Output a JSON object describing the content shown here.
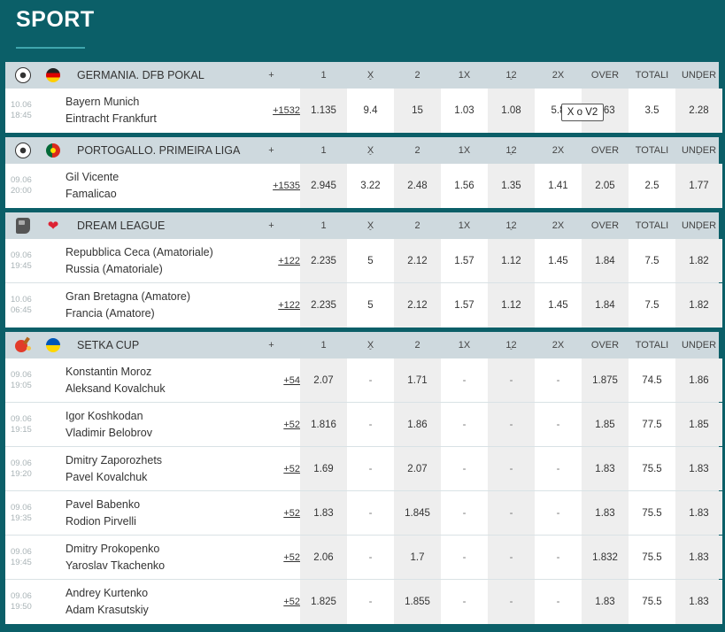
{
  "page_title": "SPORT",
  "columns": [
    "+",
    "1",
    "X",
    "2",
    "1X",
    "12",
    "2X",
    "OVER",
    "TOTALI",
    "UNDER"
  ],
  "tooltip": "X o V2",
  "leagues": [
    {
      "name": "GERMANIA. DFB POKAL",
      "sport_icon": "soccer-ball-icon",
      "flag_icon": "germany-flag-icon",
      "events": [
        {
          "date": "10.06",
          "time": "18:45",
          "home": "Bayern Munich",
          "away": "Eintracht Frankfurt",
          "more": "+1532",
          "odds": [
            "1.135",
            "9.4",
            "15",
            "1.03",
            "1.08",
            "5.8",
            "2.63",
            "3.5",
            "2.28"
          ]
        }
      ]
    },
    {
      "name": "PORTOGALLO. PRIMEIRA LIGA",
      "sport_icon": "soccer-ball-icon",
      "flag_icon": "portugal-flag-icon",
      "events": [
        {
          "date": "09.06",
          "time": "20:00",
          "home": "Gil Vicente",
          "away": "Famalicao",
          "more": "+1535",
          "odds": [
            "2.945",
            "3.22",
            "2.48",
            "1.56",
            "1.35",
            "1.41",
            "2.05",
            "2.5",
            "1.77"
          ]
        }
      ]
    },
    {
      "name": "DREAM LEAGUE",
      "sport_icon": "esport-icon",
      "flag_icon": "heart-icon",
      "events": [
        {
          "date": "09.06",
          "time": "19:45",
          "home": "Repubblica Ceca (Amatoriale)",
          "away": "Russia (Amatoriale)",
          "more": "+122",
          "odds": [
            "2.235",
            "5",
            "2.12",
            "1.57",
            "1.12",
            "1.45",
            "1.84",
            "7.5",
            "1.82"
          ]
        },
        {
          "date": "10.06",
          "time": "06:45",
          "home": "Gran Bretagna (Amatore)",
          "away": "Francia (Amatore)",
          "more": "+122",
          "odds": [
            "2.235",
            "5",
            "2.12",
            "1.57",
            "1.12",
            "1.45",
            "1.84",
            "7.5",
            "1.82"
          ]
        }
      ]
    },
    {
      "name": "SETKA CUP",
      "sport_icon": "table-tennis-icon",
      "flag_icon": "ukraine-flag-icon",
      "events": [
        {
          "date": "09.06",
          "time": "19:05",
          "home": "Konstantin Moroz",
          "away": "Aleksand Kovalchuk",
          "more": "+54",
          "odds": [
            "2.07",
            "-",
            "1.71",
            "-",
            "-",
            "-",
            "1.875",
            "74.5",
            "1.86"
          ]
        },
        {
          "date": "09.06",
          "time": "19:15",
          "home": "Igor Koshkodan",
          "away": "Vladimir Belobrov",
          "more": "+52",
          "odds": [
            "1.816",
            "-",
            "1.86",
            "-",
            "-",
            "-",
            "1.85",
            "77.5",
            "1.85"
          ]
        },
        {
          "date": "09.06",
          "time": "19:20",
          "home": "Dmitry Zaporozhets",
          "away": "Pavel Kovalchuk",
          "more": "+52",
          "odds": [
            "1.69",
            "-",
            "2.07",
            "-",
            "-",
            "-",
            "1.83",
            "75.5",
            "1.83"
          ]
        },
        {
          "date": "09.06",
          "time": "19:35",
          "home": "Pavel Babenko",
          "away": "Rodion Pirvelli",
          "more": "+52",
          "odds": [
            "1.83",
            "-",
            "1.845",
            "-",
            "-",
            "-",
            "1.83",
            "75.5",
            "1.83"
          ]
        },
        {
          "date": "09.06",
          "time": "19:45",
          "home": "Dmitry Prokopenko",
          "away": "Yaroslav Tkachenko",
          "more": "+52",
          "odds": [
            "2.06",
            "-",
            "1.7",
            "-",
            "-",
            "-",
            "1.832",
            "75.5",
            "1.83"
          ]
        },
        {
          "date": "09.06",
          "time": "19:50",
          "home": "Andrey Kurtenko",
          "away": "Adam Krasutskiy",
          "more": "+52",
          "odds": [
            "1.825",
            "-",
            "1.855",
            "-",
            "-",
            "-",
            "1.83",
            "75.5",
            "1.83"
          ]
        }
      ]
    }
  ],
  "colors": {
    "background": "#0b5f68",
    "header_row": "#ced9de",
    "alt_cell": "#eeeeee"
  }
}
